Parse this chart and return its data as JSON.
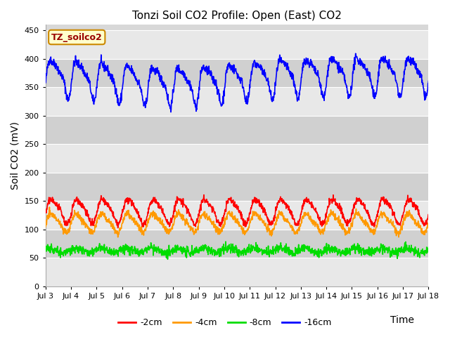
{
  "title": "Tonzi Soil CO2 Profile: Open (East) CO2",
  "ylabel": "Soil CO2 (mV)",
  "xlabel": "Time",
  "legend_label": "TZ_soilco2",
  "ylim": [
    0,
    460
  ],
  "yticks": [
    0,
    50,
    100,
    150,
    200,
    250,
    300,
    350,
    400,
    450
  ],
  "x_tick_labels": [
    "Jul 3",
    "Jul 4",
    "Jul 5",
    "Jul 6",
    "Jul 7",
    "Jul 8",
    "Jul 9",
    "Jul 10",
    "Jul 11",
    "Jul 12",
    "Jul 13",
    "Jul 14",
    "Jul 15",
    "Jul 16",
    "Jul 17",
    "Jul 18"
  ],
  "colors": {
    "-2cm": "#ff0000",
    "-4cm": "#ff9900",
    "-8cm": "#00dd00",
    "-16cm": "#0000ff"
  },
  "legend_entries": [
    "-2cm",
    "-4cm",
    "-8cm",
    "-16cm"
  ],
  "bg_color": "#ffffff",
  "plot_bg_color": "#d8d8d8",
  "band_color_light": "#e8e8e8",
  "band_color_dark": "#d0d0d0",
  "grid_color": "#ffffff",
  "n_points": 1440,
  "title_fontsize": 11,
  "axis_fontsize": 10,
  "tick_fontsize": 8,
  "legend_fontsize": 9
}
